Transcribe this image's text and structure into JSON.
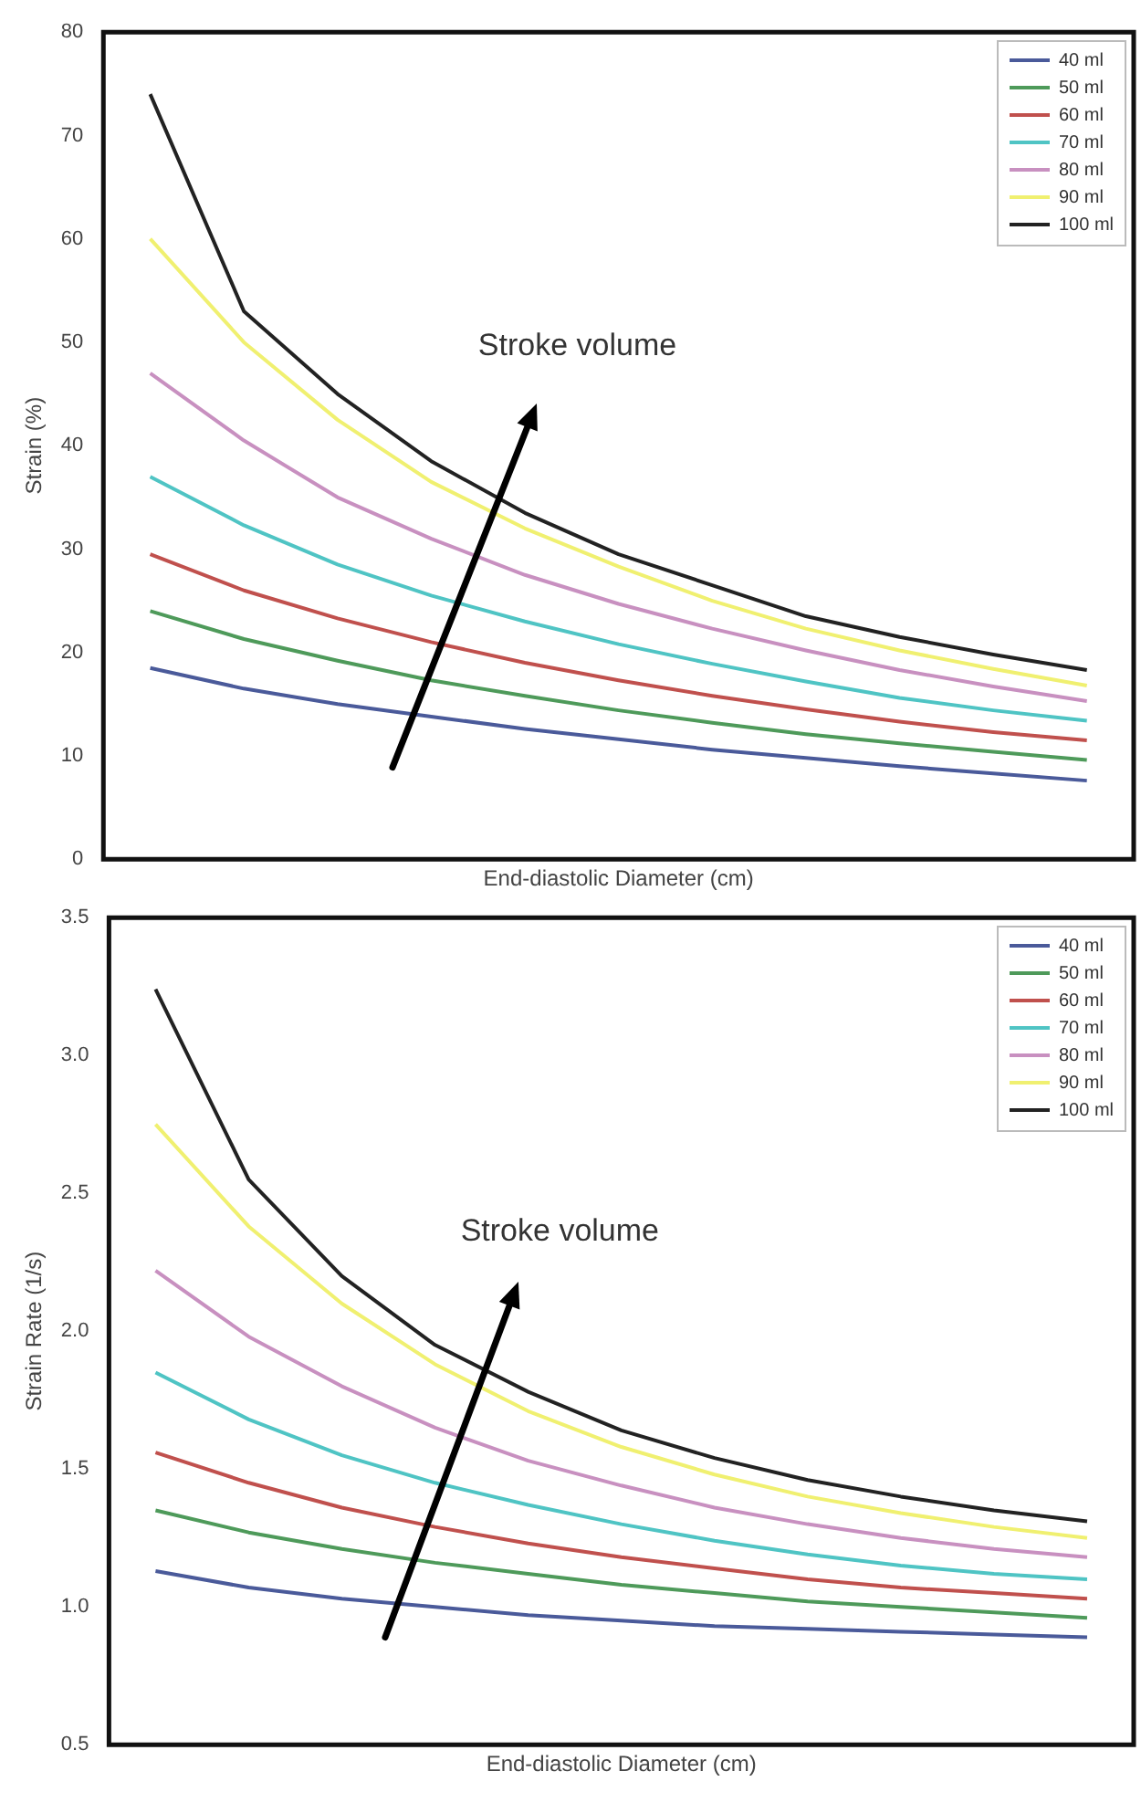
{
  "chart_data": [
    {
      "type": "line",
      "xlabel": "End-diastolic Diameter (cm)",
      "ylabel": "Strain (%)",
      "categories": [
        null,
        null,
        null,
        null,
        null,
        null,
        null,
        null,
        null,
        null,
        null
      ],
      "ylim": [
        0,
        80
      ],
      "yticks": [
        0,
        10,
        20,
        30,
        40,
        50,
        60,
        70,
        80
      ],
      "tick_labels": "y",
      "legend": "top right",
      "annotations": [
        "Stroke volume"
      ],
      "series": [
        {
          "name": "40 ml",
          "color": "#4a5a9a",
          "values": [
            18.5,
            16.5,
            15,
            13.8,
            12.6,
            11.6,
            10.6,
            9.8,
            9,
            8.3,
            7.6
          ]
        },
        {
          "name": "50 ml",
          "color": "#4e9a5a",
          "values": [
            24,
            21.3,
            19.2,
            17.3,
            15.8,
            14.4,
            13.2,
            12.1,
            11.2,
            10.4,
            9.6
          ]
        },
        {
          "name": "60 ml",
          "color": "#c0504d",
          "values": [
            29.5,
            26,
            23.3,
            21,
            19,
            17.3,
            15.8,
            14.5,
            13.3,
            12.3,
            11.5
          ]
        },
        {
          "name": "70 ml",
          "color": "#4fc4c4",
          "values": [
            37,
            32.3,
            28.5,
            25.5,
            23,
            20.8,
            18.9,
            17.2,
            15.6,
            14.4,
            13.4
          ]
        },
        {
          "name": "80 ml",
          "color": "#c890c0",
          "values": [
            47,
            40.5,
            35,
            31,
            27.5,
            24.7,
            22.3,
            20.2,
            18.3,
            16.7,
            15.3
          ]
        },
        {
          "name": "90 ml",
          "color": "#f0f070",
          "values": [
            60,
            50,
            42.5,
            36.5,
            32,
            28.3,
            25,
            22.3,
            20.2,
            18.4,
            16.8
          ]
        },
        {
          "name": "100 ml",
          "color": "#222222",
          "values": [
            74,
            53,
            45,
            38.5,
            33.5,
            29.5,
            26.5,
            23.5,
            21.5,
            19.8,
            18.3
          ]
        }
      ]
    },
    {
      "type": "line",
      "xlabel": "End-diastolic Diameter (cm)",
      "ylabel": "Strain Rate (1/s)",
      "categories": [
        null,
        null,
        null,
        null,
        null,
        null,
        null,
        null,
        null,
        null,
        null
      ],
      "ylim": [
        0.5,
        3.5
      ],
      "yticks": [
        {
          "value": 0.5,
          "label": "0.5"
        },
        {
          "value": 1,
          "label": "1.0"
        },
        {
          "value": 1.5,
          "label": "1.5"
        },
        {
          "value": 2,
          "label": "2.0"
        },
        {
          "value": 2.5,
          "label": "2.5"
        },
        {
          "value": 3,
          "label": "3.0"
        },
        {
          "value": 3.5,
          "label": "3.5"
        }
      ],
      "tick_labels": "y",
      "legend": "top right",
      "annotations": [
        "Stroke volume"
      ],
      "series": [
        {
          "name": "40 ml",
          "color": "#4a5a9a",
          "values": [
            1.13,
            1.07,
            1.03,
            1.0,
            0.97,
            0.95,
            0.93,
            0.92,
            0.91,
            0.9,
            0.89
          ]
        },
        {
          "name": "50 ml",
          "color": "#4e9a5a",
          "values": [
            1.35,
            1.27,
            1.21,
            1.16,
            1.12,
            1.08,
            1.05,
            1.02,
            1.0,
            0.98,
            0.96
          ]
        },
        {
          "name": "60 ml",
          "color": "#c0504d",
          "values": [
            1.56,
            1.45,
            1.36,
            1.29,
            1.23,
            1.18,
            1.14,
            1.1,
            1.07,
            1.05,
            1.03
          ]
        },
        {
          "name": "70 ml",
          "color": "#4fc4c4",
          "values": [
            1.85,
            1.68,
            1.55,
            1.45,
            1.37,
            1.3,
            1.24,
            1.19,
            1.15,
            1.12,
            1.1
          ]
        },
        {
          "name": "80 ml",
          "color": "#c890c0",
          "values": [
            2.22,
            1.98,
            1.8,
            1.65,
            1.53,
            1.44,
            1.36,
            1.3,
            1.25,
            1.21,
            1.18
          ]
        },
        {
          "name": "90 ml",
          "color": "#f0f070",
          "values": [
            2.75,
            2.38,
            2.1,
            1.88,
            1.71,
            1.58,
            1.48,
            1.4,
            1.34,
            1.29,
            1.25
          ]
        },
        {
          "name": "100 ml",
          "color": "#222222",
          "values": [
            3.24,
            2.55,
            2.2,
            1.95,
            1.78,
            1.64,
            1.54,
            1.46,
            1.4,
            1.35,
            1.31
          ]
        }
      ]
    }
  ]
}
